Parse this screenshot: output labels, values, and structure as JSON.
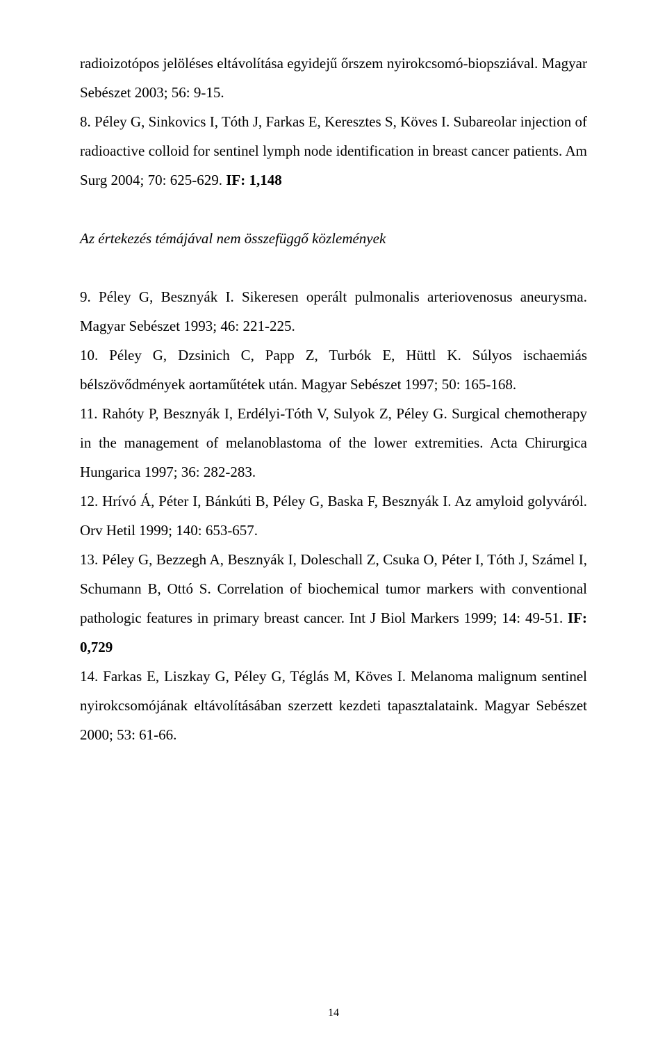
{
  "topParagraph": {
    "ref7_part1": "radioizotópos jelöléses eltávolítása egyidejű őrszem nyirokcsomó-biopsziával. Magyar Sebészet 2003; 56: 9-15.",
    "ref8_part1": "8. Péley G, Sinkovics I, Tóth J, Farkas E, Keresztes S, Köves I. Subareolar injection of radioactive colloid for sentinel lymph node identification in breast cancer patients. Am Surg 2004; 70: 625-629. ",
    "ref8_if": "IF: 1,148"
  },
  "sectionHeading": "Az értekezés témájával nem összefüggő közlemények",
  "references": {
    "ref9": "9. Péley G, Besznyák I. Sikeresen operált pulmonalis arteriovenosus aneurysma. Magyar Sebészet  1993; 46: 221-225.",
    "ref10": "10. Péley G, Dzsinich C, Papp Z, Turbók E, Hüttl K. Súlyos ischaemiás bélszövődmények aortaműtétek után. Magyar Sebészet 1997; 50: 165-168.",
    "ref11": "11. Rahóty P, Besznyák I, Erdélyi-Tóth V, Sulyok Z, Péley G. Surgical chemotherapy in the management of melanoblastoma of the lower extremities. Acta Chirurgica Hungarica 1997; 36: 282-283.",
    "ref12": "12. Hrívó Á, Péter I, Bánkúti B, Péley G, Baska F, Besznyák I. Az amyloid golyváról. Orv Hetil 1999; 140: 653-657.",
    "ref13_part1": "13. Péley G, Bezzegh A, Besznyák I, Doleschall Z, Csuka O, Péter I, Tóth J, Számel I, Schumann B, Ottó S. Correlation of biochemical tumor markers with conventional pathologic features in primary breast cancer. Int J Biol Markers 1999; 14: 49-51. ",
    "ref13_if": "IF: 0,729",
    "ref14": "14. Farkas E, Liszkay G, Péley G, Téglás M, Köves I. Melanoma malignum sentinel nyirokcsomójának eltávolításában szerzett kezdeti tapasztalataink. Magyar Sebészet 2000; 53: 61-66."
  },
  "pageNumber": "14"
}
